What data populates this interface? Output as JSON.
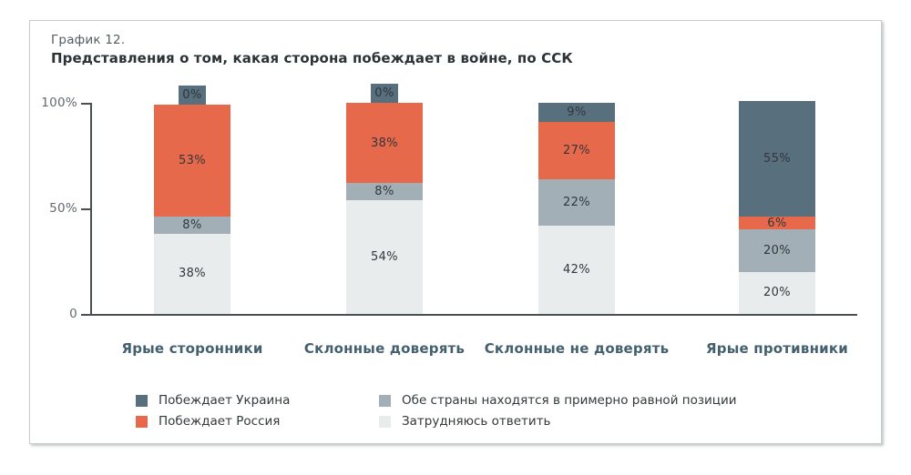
{
  "card": {
    "title_line1": "График 12.",
    "title_line2": "Представления о том, какая сторона побеждает в войне, по ССК"
  },
  "chart_data": {
    "type": "bar",
    "stacked": true,
    "title": "График 12. Представления о том, какая сторона побеждает в войне, по ССК",
    "categories": [
      "Ярые сторонники",
      "Склонные доверять",
      "Склонные не доверять",
      "Ярые противники"
    ],
    "series": [
      {
        "name": "Затрудняюсь ответить",
        "color": "#e9eced",
        "values": [
          38,
          54,
          42,
          20
        ]
      },
      {
        "name": "Обе страны находятся в примерно равной позиции",
        "color": "#a3afb6",
        "values": [
          8,
          8,
          22,
          20
        ]
      },
      {
        "name": "Побеждает Россия",
        "color": "#e7694c",
        "values": [
          53,
          38,
          27,
          6
        ]
      },
      {
        "name": "Побеждает Украина",
        "color": "#586f7d",
        "values": [
          0,
          0,
          9,
          55
        ]
      }
    ],
    "value_suffix": "%",
    "ylim": [
      0,
      100
    ],
    "yticks": [
      {
        "value": 100,
        "label": "100%"
      },
      {
        "value": 50,
        "label": "50%"
      },
      {
        "value": 0,
        "label": "0"
      }
    ],
    "grid": false,
    "legend_position": "bottom",
    "legend_columns": [
      [
        "Побеждает Украина",
        "Побеждает Россия"
      ],
      [
        "Обе страны находятся в примерно равной позиции",
        "Затрудняюсь ответить"
      ]
    ]
  },
  "colors": {
    "ukraine_wins": "#586f7d",
    "russia_wins": "#e7694c",
    "equal_position": "#a3afb6",
    "hard_to_answer": "#e9eced",
    "axis": "#4a4f52",
    "category_label": "#43606f"
  }
}
